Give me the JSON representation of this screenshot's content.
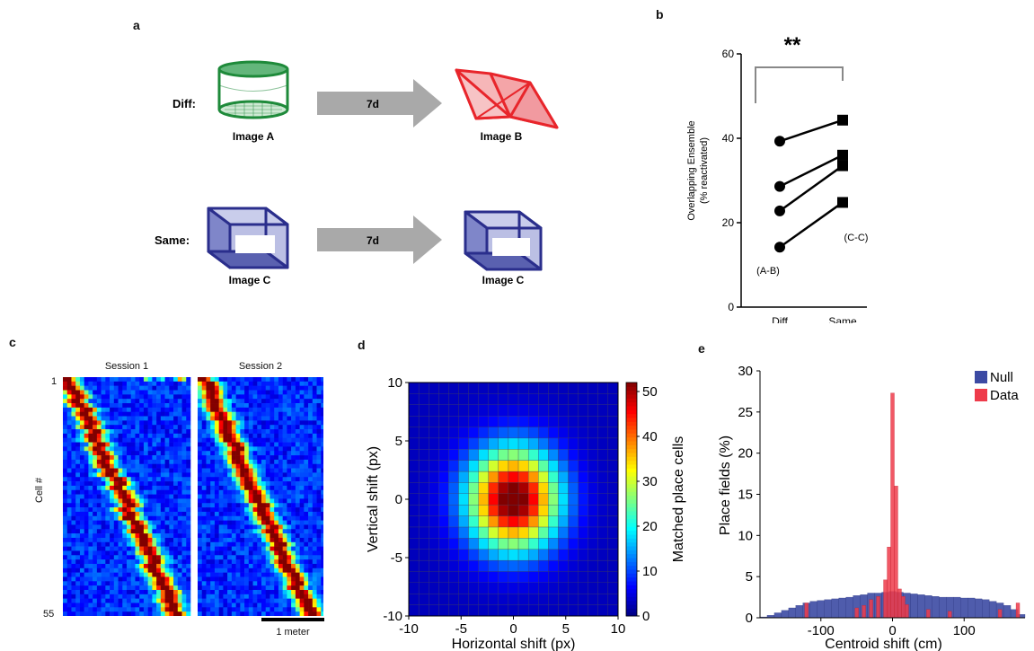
{
  "panels": {
    "a": "a",
    "b": "b",
    "c": "c",
    "d": "d",
    "e": "e"
  },
  "panel_a": {
    "rows": [
      {
        "label": "Diff:",
        "arrow_label": "7d",
        "left_caption": "Image A",
        "right_caption": "Image B"
      },
      {
        "label": "Same:",
        "arrow_label": "7d",
        "left_caption": "Image C",
        "right_caption": "Image C"
      }
    ],
    "colors": {
      "green": "#1e8a3a",
      "red": "#e8252b",
      "blue": "#2a2e8c",
      "arrow": "#a9a9a9"
    }
  },
  "panel_c": {
    "session_labels": [
      "Session 1",
      "Session 2"
    ],
    "ylabel": "Cell #",
    "row_first": "1",
    "row_last": "55",
    "scale_bar_label": "1 meter"
  },
  "chart_data": [
    {
      "panel": "b",
      "type": "line",
      "categories": [
        "Diff",
        "Same"
      ],
      "series": [
        {
          "values": [
            39.3,
            44.3
          ]
        },
        {
          "values": [
            28.6,
            36.0
          ]
        },
        {
          "values": [
            22.8,
            33.5
          ]
        },
        {
          "values": [
            14.2,
            24.8
          ]
        }
      ],
      "markers": [
        "circle",
        "square"
      ],
      "ylabel": "Overlapping Ensemble\n(% reactivated)",
      "ylim": [
        0,
        60
      ],
      "yticks": [
        0,
        20,
        40,
        60
      ],
      "annotations": [
        "(A-B)",
        "(C-C)"
      ],
      "significance": "**"
    },
    {
      "panel": "d",
      "type": "heatmap",
      "xlabel": "Horizontal shift (px)",
      "ylabel": "Vertical shift (px)",
      "xlim": [
        -10,
        10
      ],
      "ylim": [
        -10,
        10
      ],
      "xticks": [
        -10,
        -5,
        0,
        5,
        10
      ],
      "yticks": [
        -10,
        -5,
        0,
        5,
        10
      ],
      "colorbar_label": "Matched place cells",
      "colorbar_ticks": [
        0,
        10,
        20,
        30,
        40,
        50
      ],
      "colorbar_range": [
        0,
        52
      ],
      "peak": 52,
      "peak_x": 0,
      "peak_y": 0
    },
    {
      "panel": "e",
      "type": "bar",
      "xlabel": "Centroid shift (cm)",
      "ylabel": "Place fields (%)",
      "xlim": [
        -185,
        185
      ],
      "ylim": [
        0,
        30
      ],
      "xticks": [
        -100,
        0,
        100
      ],
      "yticks": [
        0,
        5,
        10,
        15,
        20,
        25,
        30
      ],
      "legend_position": "top-right",
      "series": [
        {
          "name": "Null",
          "color": "#3c4aa3",
          "x": [
            -180,
            -170,
            -160,
            -150,
            -140,
            -130,
            -120,
            -110,
            -100,
            -90,
            -80,
            -70,
            -60,
            -50,
            -40,
            -30,
            -20,
            -10,
            0,
            10,
            20,
            30,
            40,
            50,
            60,
            70,
            80,
            90,
            100,
            110,
            120,
            130,
            140,
            150,
            160,
            170,
            180
          ],
          "values": [
            0.1,
            0.3,
            0.6,
            0.9,
            1.2,
            1.5,
            1.8,
            2.0,
            2.1,
            2.2,
            2.3,
            2.4,
            2.5,
            2.7,
            2.8,
            3.0,
            3.0,
            3.1,
            3.2,
            3.1,
            3.0,
            2.9,
            2.8,
            2.7,
            2.6,
            2.5,
            2.5,
            2.5,
            2.4,
            2.4,
            2.3,
            2.2,
            2.0,
            1.8,
            1.5,
            1.0,
            0.4
          ]
        },
        {
          "name": "Data",
          "color": "#ee3b4a",
          "x": [
            -120,
            -50,
            -40,
            -30,
            -20,
            -10,
            -5,
            0,
            5,
            10,
            15,
            20,
            50,
            80,
            150,
            175
          ],
          "values": [
            1.8,
            1.2,
            1.5,
            2.2,
            2.6,
            4.6,
            8.6,
            27.3,
            16.0,
            3.5,
            2.6,
            1.6,
            1.0,
            0.8,
            1.0,
            1.8
          ]
        }
      ]
    }
  ]
}
